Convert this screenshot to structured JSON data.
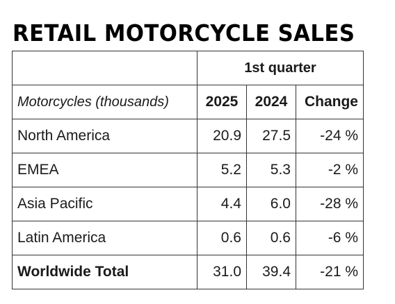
{
  "title": "RETAIL MOTORCYCLE SALES",
  "table": {
    "group_header": "1st quarter",
    "row_label_header": "Motorcycles (thousands)",
    "columns": [
      "2025",
      "2024",
      "Change"
    ],
    "rows": [
      {
        "label": "North America",
        "y2025": "20.9",
        "y2024": "27.5",
        "change": "-24 %"
      },
      {
        "label": "EMEA",
        "y2025": "5.2",
        "y2024": "5.3",
        "change": "-2 %"
      },
      {
        "label": "Asia Pacific",
        "y2025": "4.4",
        "y2024": "6.0",
        "change": "-28 %"
      },
      {
        "label": "Latin America",
        "y2025": "0.6",
        "y2024": "0.6",
        "change": "-6 %"
      }
    ],
    "total": {
      "label": "Worldwide Total",
      "y2025": "31.0",
      "y2024": "39.4",
      "change": "-21 %"
    }
  }
}
